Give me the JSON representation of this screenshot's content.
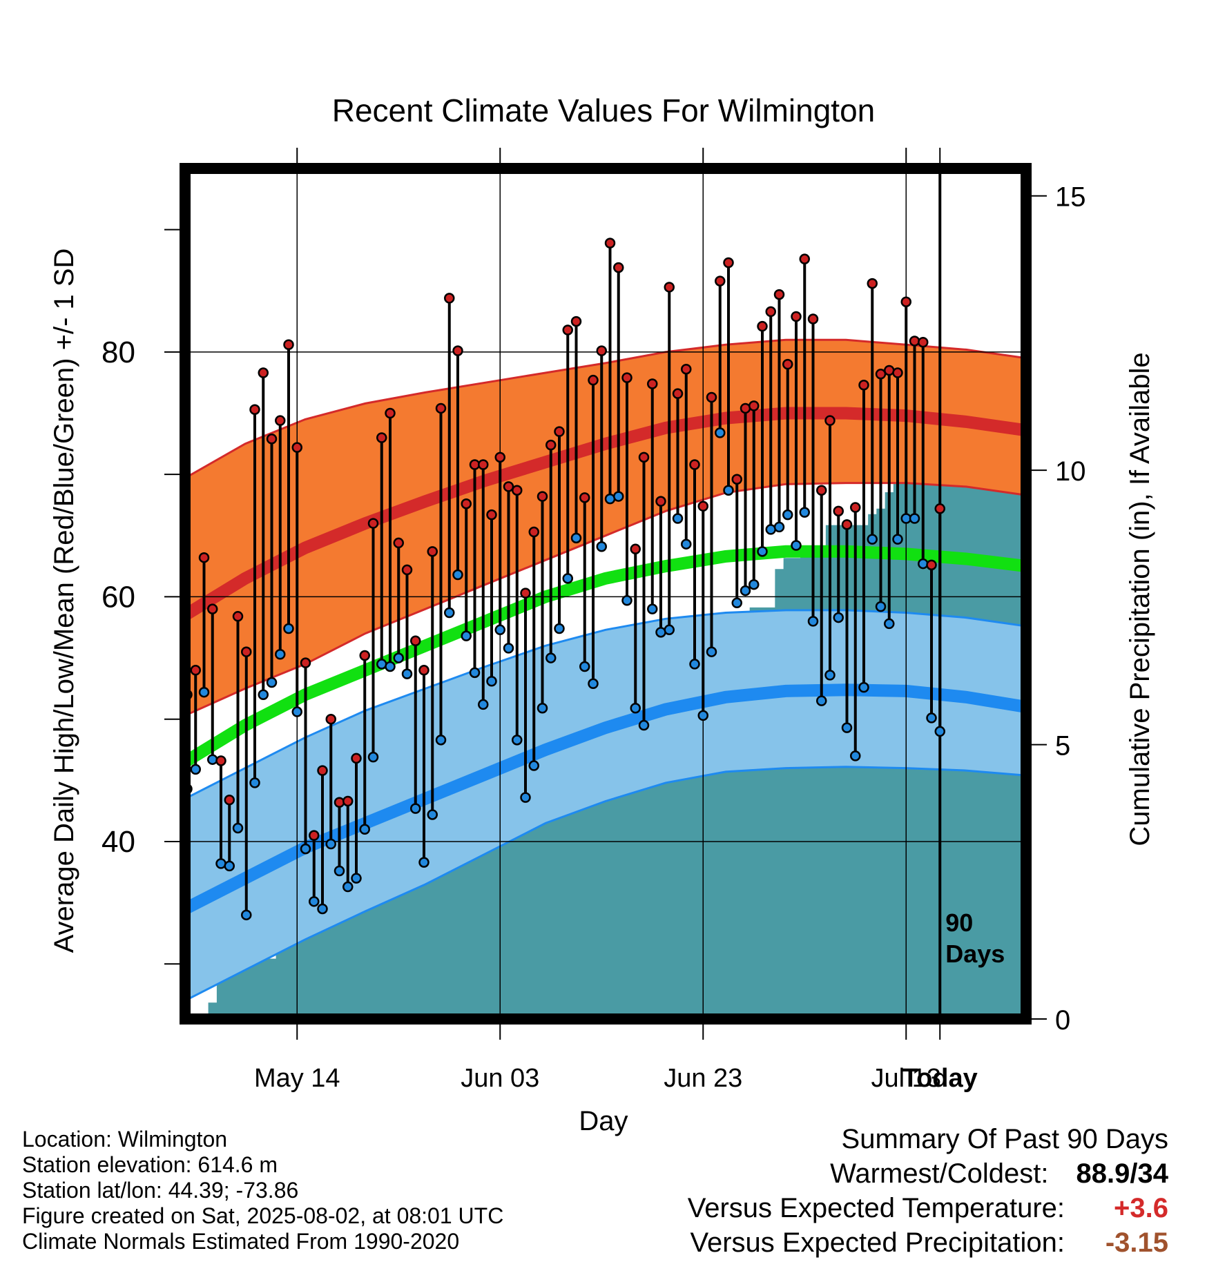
{
  "chart_data": {
    "type": "line",
    "title": "Recent Climate Values For Wilmington",
    "xlabel": "Day",
    "ylabel": "Average Daily High/Low/Mean (Red/Blue/Green) +/- 1 SD",
    "y2label": "Cumulative Precipitation (in), If Available",
    "x_ticks": [
      "May 14",
      "Jun 03",
      "Jun 23",
      "Jul 13",
      "Today"
    ],
    "y_ticks": [
      40,
      60,
      80
    ],
    "y2_ticks": [
      0,
      5,
      10,
      15
    ],
    "ylim": [
      25.5,
      95
    ],
    "y2lim": [
      0,
      15.5
    ],
    "marker_label": "90 Days",
    "grid": true,
    "normals": {
      "high_mean": [
        58.5,
        61.5,
        64.0,
        66.0,
        67.8,
        69.5,
        71.0,
        72.5,
        73.8,
        74.6,
        75.0,
        75.0,
        74.8,
        74.3,
        73.6
      ],
      "high_upper": [
        69.7,
        72.5,
        74.5,
        75.8,
        76.7,
        77.5,
        78.3,
        79.1,
        80.0,
        80.6,
        81.0,
        81.0,
        80.6,
        80.2,
        79.5
      ],
      "high_lower": [
        50.3,
        52.5,
        54.5,
        57.0,
        59.0,
        61.0,
        63.0,
        65.0,
        67.0,
        68.5,
        69.2,
        69.3,
        69.3,
        69.0,
        68.3
      ],
      "mean": [
        46.5,
        49.5,
        52.0,
        54.0,
        56.0,
        58.0,
        60.0,
        61.5,
        62.5,
        63.3,
        63.7,
        63.7,
        63.5,
        63.1,
        62.5
      ],
      "low_mean": [
        34.5,
        37.0,
        39.5,
        41.5,
        43.5,
        45.5,
        47.5,
        49.3,
        50.8,
        51.8,
        52.3,
        52.4,
        52.3,
        51.8,
        51.0
      ],
      "low_upper": [
        43.5,
        46.0,
        48.5,
        50.7,
        52.5,
        54.3,
        56.0,
        57.3,
        58.2,
        58.7,
        58.9,
        58.9,
        58.7,
        58.3,
        57.6
      ],
      "low_lower": [
        27.0,
        29.5,
        32.0,
        34.3,
        36.5,
        39.0,
        41.5,
        43.3,
        44.8,
        45.7,
        46.0,
        46.1,
        46.0,
        45.8,
        45.4
      ]
    },
    "series": [
      {
        "name": "High",
        "values": [
          52,
          54,
          63.2,
          59,
          46.6,
          43.4,
          58.4,
          55.5,
          75.3,
          78.3,
          72.9,
          74.4,
          80.6,
          72.2,
          54.6,
          40.5,
          45.8,
          50,
          43.2,
          43.3,
          46.8,
          55.2,
          66,
          73,
          75,
          64.4,
          62.2,
          56.4,
          54,
          63.7,
          75.4,
          84.4,
          80.1,
          67.6,
          70.8,
          70.8,
          66.7,
          71.4,
          69,
          68.7,
          60.3,
          65.3,
          68.2,
          72.4,
          73.5,
          81.8,
          82.5,
          68.1,
          77.7,
          80.1,
          88.9,
          86.9,
          77.9,
          63.9,
          71.4,
          77.4,
          67.8,
          85.3,
          76.6,
          78.6,
          70.8,
          67.4,
          76.3,
          85.8,
          87.3,
          69.6,
          75.4,
          75.6,
          82.1,
          83.3,
          84.7,
          79.0,
          82.9,
          87.6,
          82.7,
          68.7,
          74.4,
          67.0,
          65.9,
          67.3,
          77.3,
          85.6,
          78.2,
          78.5,
          78.3,
          84.1,
          80.9,
          80.8,
          62.6,
          67.2
        ]
      },
      {
        "name": "Low",
        "values": [
          44.3,
          45.9,
          52.2,
          46.7,
          38.2,
          38.0,
          41.1,
          34.0,
          44.8,
          52.0,
          53.0,
          55.3,
          57.4,
          50.6,
          39.4,
          35.1,
          34.5,
          39.8,
          37.6,
          36.3,
          37.0,
          41.0,
          46.9,
          54.5,
          54.3,
          55.0,
          53.7,
          42.7,
          38.3,
          42.2,
          48.3,
          58.7,
          61.8,
          56.8,
          53.8,
          51.2,
          53.1,
          57.3,
          55.8,
          48.3,
          43.6,
          46.2,
          50.9,
          55.0,
          57.4,
          61.5,
          64.8,
          54.3,
          52.9,
          64.1,
          68.0,
          68.2,
          59.7,
          50.9,
          49.5,
          59.0,
          57.1,
          57.3,
          66.4,
          64.3,
          54.5,
          50.3,
          55.5,
          73.4,
          68.7,
          59.5,
          60.5,
          61.0,
          63.7,
          65.5,
          65.7,
          66.7,
          64.2,
          66.9,
          58.0,
          51.5,
          53.6,
          58.3,
          49.3,
          47.0,
          52.6,
          64.7,
          59.2,
          57.8,
          64.7,
          66.4,
          66.4,
          62.7,
          50.1,
          49.0
        ]
      },
      {
        "name": "Cumulative Precipitation",
        "values": [
          0,
          0,
          0,
          0.3,
          1.1,
          1.1,
          1.1,
          1.1,
          1.1,
          1.1,
          1.1,
          1.3,
          1.8,
          2.4,
          2.4,
          2.4,
          2.4,
          2.5,
          3.0,
          3.7,
          3.7,
          3.7,
          3.7,
          3.7,
          3.7,
          3.7,
          4.0,
          5.1,
          5.1,
          5.1,
          5.1,
          5.1,
          5.2,
          5.4,
          5.4,
          5.4,
          5.4,
          5.6,
          5.7,
          5.7,
          5.7,
          5.7,
          5.7,
          5.7,
          5.7,
          5.7,
          5.8,
          6.0,
          6.1,
          6.3,
          6.4,
          6.4,
          6.4,
          6.4,
          6.4,
          6.7,
          6.7,
          6.7,
          6.8,
          6.9,
          7.0,
          7.0,
          7.0,
          7.0,
          7.3,
          7.3,
          7.3,
          7.5,
          7.5,
          7.5,
          8.2,
          8.4,
          8.4,
          8.5,
          8.5,
          8.5,
          9.0,
          9.0,
          9.0,
          9.0,
          9.0,
          9.2,
          9.3,
          9.6,
          10.2,
          10.2,
          10.2,
          10.3,
          10.3,
          10.3
        ]
      }
    ]
  },
  "info": {
    "location": "Location: Wilmington",
    "elevation": "Station elevation: 614.6 m",
    "latlon": "Station lat/lon: 44.39; -73.86",
    "created": "Figure created on Sat, 2025-08-02, at 08:01 UTC",
    "normals": "Climate Normals Estimated From 1990-2020"
  },
  "summary": {
    "title": "Summary Of Past 90 Days",
    "warmest_label": "Warmest/Coldest:",
    "warmest_value": "88.9/34",
    "temp_label": "Versus Expected Temperature:",
    "temp_value": "+3.6",
    "precip_label": "Versus Expected Precipitation:",
    "precip_value": "-3.15"
  },
  "colors": {
    "high_band": "#f47a30",
    "high_line": "#d42a2a",
    "low_band": "#86c3ea",
    "low_line": "#1e8af0",
    "mean_line": "#11e011",
    "precip": "#4a9ba4",
    "high_dot": "#cc2222",
    "low_dot": "#2288dd",
    "temp_value": "#d42a2a",
    "precip_value": "#a0522d"
  }
}
